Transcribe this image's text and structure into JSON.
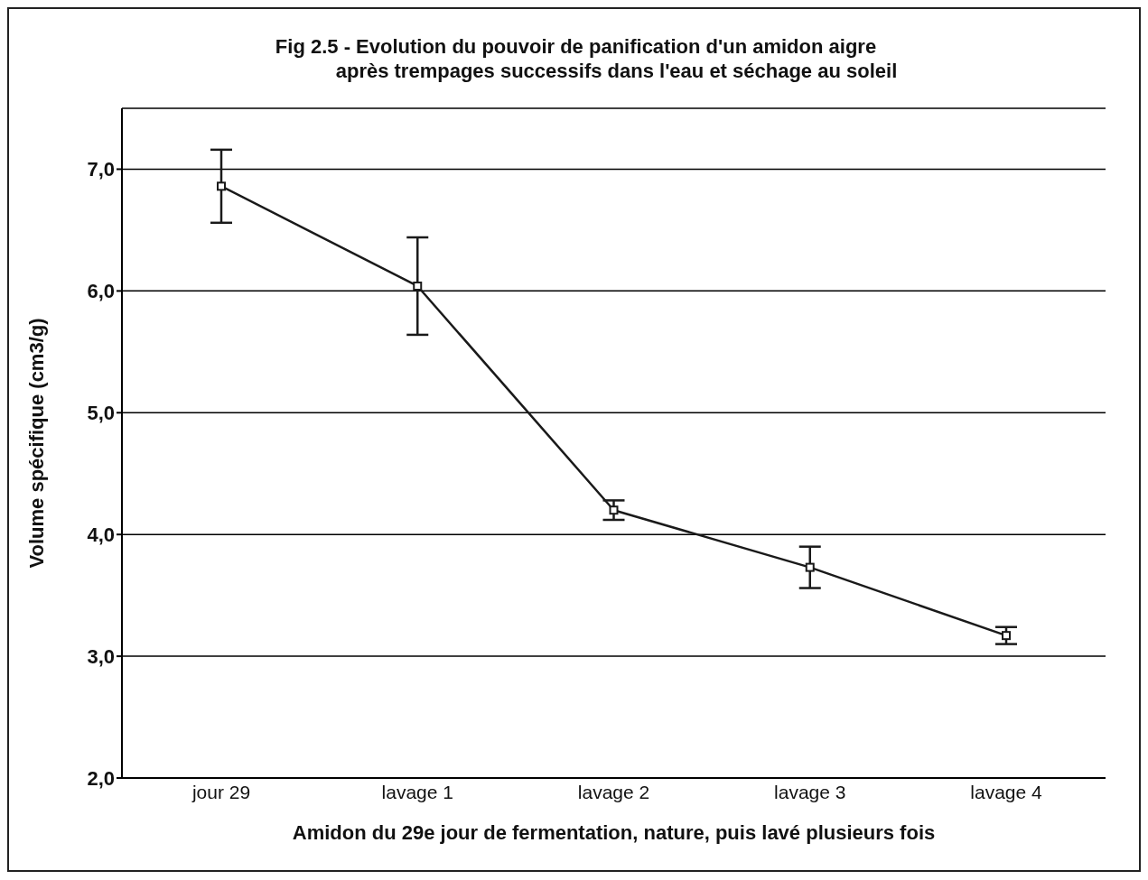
{
  "chart_data": {
    "type": "line",
    "title": "Fig 2.5 - Evolution du pouvoir de panification d'un amidon aigre\naprès trempages successifs dans l'eau et séchage au soleil",
    "xlabel": "Amidon du 29e jour de fermentation, nature, puis lavé plusieurs fois",
    "ylabel": "Volume spécifique (cm3/g)",
    "categories": [
      "jour 29",
      "lavage 1",
      "lavage 2",
      "lavage 3",
      "lavage 4"
    ],
    "series": [
      {
        "color": "#1a1a1a",
        "values": [
          6.86,
          6.04,
          4.2,
          3.73,
          3.17
        ],
        "errors": [
          0.3,
          0.4,
          0.08,
          0.17,
          0.07
        ]
      }
    ],
    "ylim": [
      2,
      7.5
    ],
    "yticks": [
      {
        "value": 2,
        "label": "2,0"
      },
      {
        "value": 3,
        "label": "3,0"
      },
      {
        "value": 4,
        "label": "4,0"
      },
      {
        "value": 5,
        "label": "5,0"
      },
      {
        "value": 6,
        "label": "6,0"
      },
      {
        "value": 7,
        "label": "7,0"
      }
    ],
    "grid": "y",
    "marker": "square",
    "line_style": "solid"
  }
}
